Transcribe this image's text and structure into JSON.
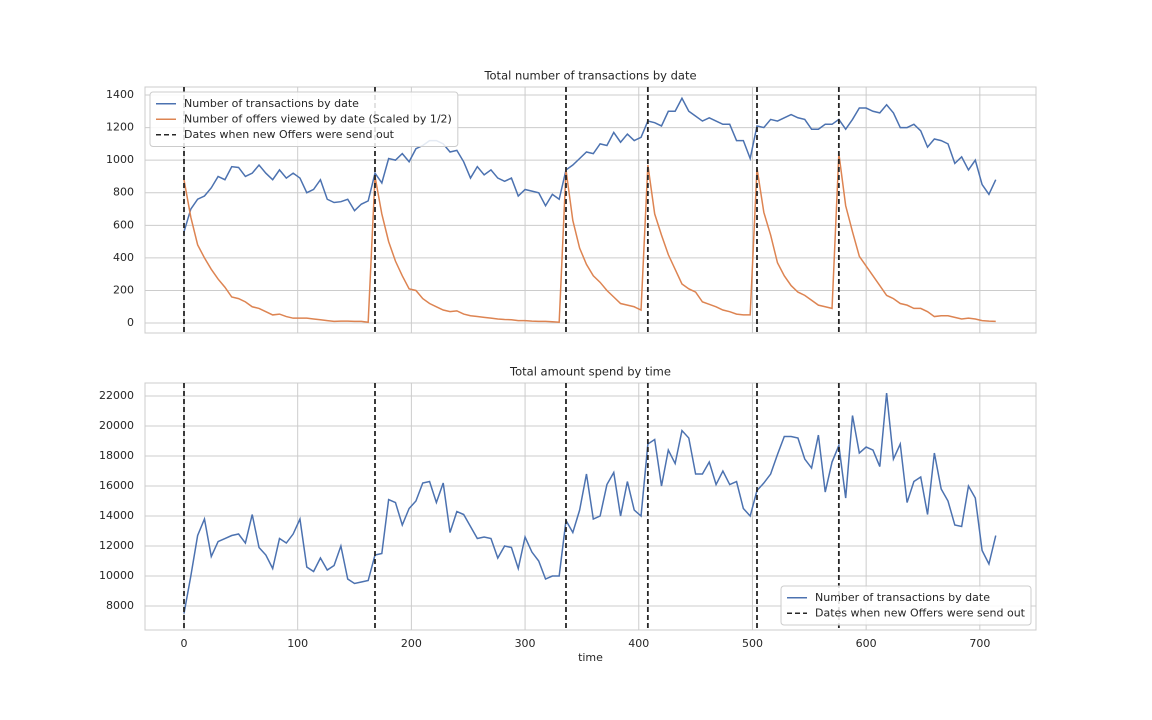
{
  "chart_data": [
    {
      "type": "line",
      "title": "Total number of transactions by date",
      "x": [
        0,
        6,
        12,
        18,
        24,
        30,
        36,
        42,
        48,
        54,
        60,
        66,
        72,
        78,
        84,
        90,
        96,
        102,
        108,
        114,
        120,
        126,
        132,
        138,
        144,
        150,
        156,
        162,
        168,
        174,
        180,
        186,
        192,
        198,
        204,
        210,
        216,
        222,
        228,
        234,
        240,
        246,
        252,
        258,
        264,
        270,
        276,
        282,
        288,
        294,
        300,
        306,
        312,
        318,
        324,
        330,
        336,
        342,
        348,
        354,
        360,
        366,
        372,
        378,
        384,
        390,
        396,
        402,
        408,
        414,
        420,
        426,
        432,
        438,
        444,
        450,
        456,
        462,
        468,
        474,
        480,
        486,
        492,
        498,
        504,
        510,
        516,
        522,
        528,
        534,
        540,
        546,
        552,
        558,
        564,
        570,
        576,
        582,
        588,
        594,
        600,
        606,
        612,
        618,
        624,
        630,
        636,
        642,
        648,
        654,
        660,
        666,
        672,
        678,
        684,
        690,
        696,
        702,
        708,
        714
      ],
      "series": [
        {
          "name": "Number of transactions by date",
          "color": "#4c72b0",
          "values": [
            560,
            700,
            760,
            780,
            830,
            900,
            880,
            960,
            955,
            900,
            920,
            970,
            920,
            880,
            940,
            890,
            920,
            890,
            800,
            820,
            880,
            760,
            740,
            745,
            760,
            690,
            730,
            750,
            920,
            860,
            1010,
            1000,
            1040,
            990,
            1070,
            1090,
            1120,
            1120,
            1100,
            1050,
            1060,
            990,
            890,
            960,
            910,
            940,
            890,
            870,
            890,
            780,
            820,
            810,
            800,
            720,
            790,
            760,
            940,
            970,
            1010,
            1050,
            1040,
            1100,
            1090,
            1170,
            1110,
            1160,
            1120,
            1140,
            1240,
            1230,
            1210,
            1300,
            1300,
            1380,
            1300,
            1270,
            1240,
            1260,
            1240,
            1220,
            1220,
            1120,
            1120,
            1010,
            1210,
            1200,
            1250,
            1240,
            1260,
            1280,
            1260,
            1250,
            1190,
            1190,
            1220,
            1220,
            1250,
            1190,
            1250,
            1320,
            1320,
            1300,
            1290,
            1340,
            1290,
            1200,
            1200,
            1220,
            1180,
            1080,
            1130,
            1120,
            1100,
            980,
            1020,
            940,
            1000,
            850,
            790,
            880
          ]
        },
        {
          "name": "Number of offers viewed by date (Scaled by 1/2)",
          "color": "#dd8452",
          "values": [
            880,
            650,
            480,
            400,
            330,
            270,
            220,
            160,
            150,
            130,
            100,
            90,
            70,
            50,
            55,
            40,
            30,
            30,
            30,
            25,
            20,
            15,
            10,
            12,
            12,
            10,
            10,
            5,
            900,
            670,
            500,
            380,
            290,
            210,
            200,
            150,
            120,
            100,
            80,
            70,
            75,
            55,
            45,
            40,
            35,
            30,
            25,
            22,
            20,
            15,
            15,
            12,
            10,
            10,
            8,
            5,
            940,
            630,
            460,
            360,
            290,
            250,
            200,
            160,
            120,
            110,
            100,
            80,
            970,
            670,
            540,
            420,
            330,
            240,
            210,
            190,
            130,
            115,
            100,
            80,
            70,
            55,
            50,
            50,
            950,
            680,
            540,
            370,
            290,
            230,
            190,
            170,
            140,
            110,
            100,
            90,
            1040,
            720,
            560,
            410,
            350,
            290,
            230,
            170,
            150,
            120,
            110,
            90,
            90,
            70,
            40,
            45,
            45,
            35,
            25,
            30,
            25,
            15,
            12,
            10
          ]
        }
      ],
      "vlines": {
        "name": "Dates when new Offers were send out",
        "color": "#262626",
        "x": [
          0,
          168,
          336,
          408,
          504,
          576
        ]
      },
      "xlim": [
        -34.3,
        749.4
      ],
      "xticks": [
        0,
        100,
        200,
        300,
        400,
        500,
        600,
        700
      ],
      "xtick_labels": false,
      "ylim": [
        -61,
        1449
      ],
      "yticks": [
        0,
        200,
        400,
        600,
        800,
        1000,
        1200,
        1400
      ],
      "grid": true,
      "legend": "upper left"
    },
    {
      "type": "line",
      "title": "Total amount spend by time",
      "xlabel": "time",
      "x": [
        0,
        6,
        12,
        18,
        24,
        30,
        36,
        42,
        48,
        54,
        60,
        66,
        72,
        78,
        84,
        90,
        96,
        102,
        108,
        114,
        120,
        126,
        132,
        138,
        144,
        150,
        156,
        162,
        168,
        174,
        180,
        186,
        192,
        198,
        204,
        210,
        216,
        222,
        228,
        234,
        240,
        246,
        252,
        258,
        264,
        270,
        276,
        282,
        288,
        294,
        300,
        306,
        312,
        318,
        324,
        330,
        336,
        342,
        348,
        354,
        360,
        366,
        372,
        378,
        384,
        390,
        396,
        402,
        408,
        414,
        420,
        426,
        432,
        438,
        444,
        450,
        456,
        462,
        468,
        474,
        480,
        486,
        492,
        498,
        504,
        510,
        516,
        522,
        528,
        534,
        540,
        546,
        552,
        558,
        564,
        570,
        576,
        582,
        588,
        594,
        600,
        606,
        612,
        618,
        624,
        630,
        636,
        642,
        648,
        654,
        660,
        666,
        672,
        678,
        684,
        690,
        696,
        702,
        708,
        714
      ],
      "series": [
        {
          "name": "Number of transactions by date",
          "color": "#4c72b0",
          "values": [
            7500,
            10000,
            12700,
            13800,
            11300,
            12300,
            12500,
            12700,
            12800,
            12200,
            14100,
            11900,
            11400,
            10500,
            12500,
            12200,
            12800,
            13800,
            10600,
            10300,
            11200,
            10400,
            10700,
            12000,
            9800,
            9500,
            9600,
            9700,
            11400,
            11500,
            15100,
            14900,
            13400,
            14500,
            15000,
            16200,
            16300,
            14900,
            16200,
            12900,
            14300,
            14100,
            13300,
            12500,
            12600,
            12500,
            11200,
            12000,
            11900,
            10500,
            12600,
            11600,
            11000,
            9800,
            10000,
            10000,
            13700,
            12900,
            14400,
            16800,
            13800,
            14000,
            16100,
            16900,
            14000,
            16300,
            14400,
            14000,
            18800,
            19100,
            16000,
            18400,
            17500,
            19700,
            19200,
            16800,
            16800,
            17600,
            16100,
            17000,
            16100,
            16300,
            14500,
            14000,
            15700,
            16200,
            16800,
            18100,
            19300,
            19300,
            19200,
            17800,
            17200,
            19400,
            15600,
            17600,
            18700,
            15200,
            20700,
            18200,
            18600,
            18400,
            17300,
            22200,
            17800,
            18800,
            14900,
            16300,
            16600,
            14100,
            18200,
            15800,
            15000,
            13400,
            13300,
            16000,
            15200,
            11700,
            10800,
            12700
          ]
        }
      ],
      "vlines": {
        "name": "Dates when new Offers were send out",
        "color": "#262626",
        "x": [
          0,
          168,
          336,
          408,
          504,
          576
        ]
      },
      "xlim": [
        -34.3,
        749.4
      ],
      "xticks": [
        0,
        100,
        200,
        300,
        400,
        500,
        600,
        700
      ],
      "xtick_labels": true,
      "ylim": [
        6400,
        22870
      ],
      "yticks": [
        8000,
        10000,
        12000,
        14000,
        16000,
        18000,
        20000,
        22000
      ],
      "grid": true,
      "legend": "lower right"
    }
  ]
}
